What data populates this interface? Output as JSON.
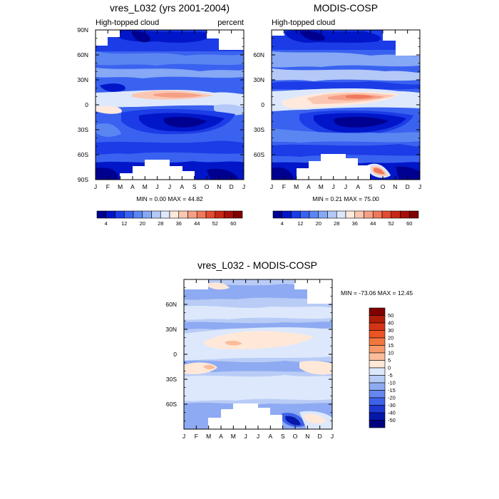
{
  "chart_data": [
    {
      "type": "heatmap",
      "title": "vres_L032 (yrs 2001-2004)",
      "left_label": "High-topped cloud",
      "right_label": "percent",
      "stats": "MIN =   0.00 MAX =  44.82",
      "x_ticks": [
        "J",
        "F",
        "M",
        "A",
        "M",
        "J",
        "J",
        "A",
        "S",
        "O",
        "N",
        "D",
        "J"
      ],
      "y_ticks": [
        "90N",
        "60N",
        "30N",
        "0",
        "30S",
        "60S",
        "90S"
      ],
      "y_tick_values": [
        90,
        60,
        30,
        0,
        -30,
        -60,
        -90
      ],
      "xlim": [
        0,
        12
      ],
      "ylim": [
        -90,
        90
      ],
      "units": "percent",
      "features": [
        {
          "lat": 5,
          "month": 4.5,
          "value": 38
        },
        {
          "lat": -18,
          "month": 7.5,
          "value": 3
        },
        {
          "lat": 20,
          "month": 7,
          "value": 12
        }
      ]
    },
    {
      "type": "heatmap",
      "title": "MODIS-COSP",
      "left_label": "High-topped cloud",
      "right_label": "",
      "stats": "MIN =   0.21 MAX =  75.00",
      "x_ticks": [
        "J",
        "F",
        "M",
        "A",
        "M",
        "J",
        "J",
        "A",
        "S",
        "O",
        "N",
        "D",
        "J"
      ],
      "y_ticks": [
        "60N",
        "30N",
        "0",
        "30S",
        "60S"
      ],
      "y_tick_values": [
        60,
        30,
        0,
        -30,
        -60
      ],
      "xlim": [
        0,
        12
      ],
      "ylim": [
        -90,
        90
      ],
      "units": "percent",
      "features": [
        {
          "lat": 8,
          "month": 6.5,
          "value": 45
        },
        {
          "lat": -15,
          "month": 7,
          "value": 6
        },
        {
          "lat": -78,
          "month": 9.5,
          "value": 40
        }
      ]
    },
    {
      "type": "heatmap",
      "title": "vres_L032 - MODIS-COSP",
      "left_label": "",
      "right_label": "",
      "stats": "MIN = -73.06 MAX =  12.45",
      "x_ticks": [
        "J",
        "F",
        "M",
        "A",
        "M",
        "J",
        "J",
        "A",
        "S",
        "O",
        "N",
        "D",
        "J"
      ],
      "y_ticks": [
        "60N",
        "30N",
        "0",
        "30S",
        "60S"
      ],
      "y_tick_values": [
        60,
        30,
        0,
        -30,
        -60
      ],
      "xlim": [
        0,
        12
      ],
      "ylim": [
        -90,
        90
      ],
      "units": "percent",
      "features": [
        {
          "lat": 20,
          "month": 6,
          "value": 3
        },
        {
          "lat": -78,
          "month": 9.2,
          "value": -40
        }
      ]
    }
  ],
  "colorbars": {
    "absolute": {
      "labels": [
        "4",
        "12",
        "20",
        "28",
        "36",
        "44",
        "52",
        "60"
      ],
      "colors": [
        "#000090",
        "#0016c8",
        "#1b3ce6",
        "#3a62f0",
        "#5a86f2",
        "#86a8f5",
        "#b4c9f8",
        "#dde8fc",
        "#ffe9dc",
        "#fcc7b2",
        "#f5a086",
        "#ef785a",
        "#e34b32",
        "#c92618",
        "#a80e08",
        "#7f0000"
      ]
    },
    "difference": {
      "labels": [
        "50",
        "40",
        "30",
        "20",
        "15",
        "10",
        "5",
        "0",
        "-5",
        "-10",
        "-15",
        "-20",
        "-30",
        "-40",
        "-50"
      ],
      "colors": [
        "#7f0000",
        "#b01d08",
        "#d43416",
        "#ec5424",
        "#f2773f",
        "#f7996b",
        "#fabd9b",
        "#ffe8d8",
        "#dde8fc",
        "#b8ccf6",
        "#8eaaf2",
        "#6587ee",
        "#3f62e8",
        "#1d39d2",
        "#0617aa",
        "#000080"
      ]
    }
  }
}
